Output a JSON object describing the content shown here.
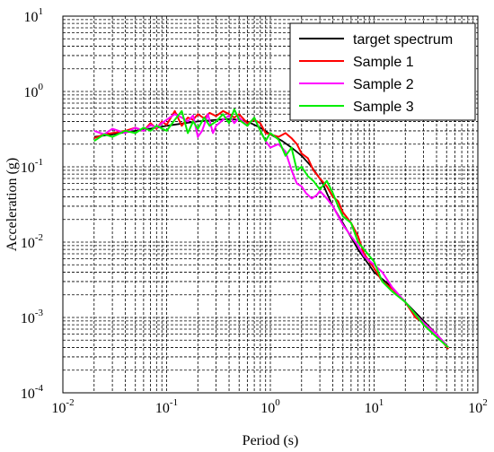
{
  "chart_data": {
    "type": "line",
    "xlabel": "Period (s)",
    "ylabel": "Acceleration (g)",
    "xscale": "log",
    "yscale": "log",
    "xlim": [
      0.01,
      100
    ],
    "ylim": [
      0.0001,
      10
    ],
    "grid": true,
    "legend_position": "top-right",
    "x_ticks": [
      {
        "base": "10",
        "exp": "-2"
      },
      {
        "base": "10",
        "exp": "-1"
      },
      {
        "base": "10",
        "exp": "0"
      },
      {
        "base": "10",
        "exp": "1"
      },
      {
        "base": "10",
        "exp": "2"
      }
    ],
    "y_ticks": [
      {
        "base": "10",
        "exp": "-4"
      },
      {
        "base": "10",
        "exp": "-3"
      },
      {
        "base": "10",
        "exp": "-2"
      },
      {
        "base": "10",
        "exp": "-1"
      },
      {
        "base": "10",
        "exp": "0"
      },
      {
        "base": "10",
        "exp": "1"
      }
    ],
    "series": [
      {
        "name": "target spectrum",
        "color": "#000000",
        "x": [
          0.02,
          0.03,
          0.05,
          0.08,
          0.1,
          0.15,
          0.2,
          0.3,
          0.4,
          0.5,
          0.6,
          0.8,
          1.0,
          1.3,
          1.6,
          2.0,
          2.5,
          3.0,
          3.2,
          3.5,
          4.0,
          5.0,
          7.0,
          10.0,
          15.0,
          20.0,
          30.0,
          40.0,
          50.0
        ],
        "y": [
          0.25,
          0.27,
          0.3,
          0.33,
          0.35,
          0.38,
          0.4,
          0.42,
          0.43,
          0.42,
          0.4,
          0.33,
          0.27,
          0.22,
          0.18,
          0.14,
          0.1,
          0.07,
          0.06,
          0.045,
          0.03,
          0.018,
          0.008,
          0.004,
          0.0025,
          0.0016,
          0.0009,
          0.0006,
          0.00043
        ]
      },
      {
        "name": "Sample 1",
        "color": "#ff0000",
        "x": [
          0.02,
          0.025,
          0.03,
          0.04,
          0.05,
          0.06,
          0.07,
          0.08,
          0.09,
          0.1,
          0.12,
          0.14,
          0.16,
          0.18,
          0.2,
          0.23,
          0.26,
          0.3,
          0.35,
          0.4,
          0.45,
          0.5,
          0.6,
          0.7,
          0.8,
          0.9,
          1.0,
          1.2,
          1.4,
          1.6,
          1.8,
          2.0,
          2.3,
          2.6,
          3.0,
          3.5,
          4.0,
          4.5,
          5.0,
          6.0,
          7.0,
          8.0,
          10.0,
          12.0,
          15.0,
          20.0,
          25.0,
          30.0,
          40.0,
          52.0
        ],
        "y": [
          0.24,
          0.27,
          0.28,
          0.3,
          0.33,
          0.3,
          0.38,
          0.32,
          0.4,
          0.36,
          0.55,
          0.35,
          0.45,
          0.42,
          0.5,
          0.44,
          0.52,
          0.47,
          0.55,
          0.5,
          0.45,
          0.5,
          0.38,
          0.42,
          0.38,
          0.28,
          0.27,
          0.25,
          0.28,
          0.24,
          0.2,
          0.15,
          0.13,
          0.09,
          0.07,
          0.055,
          0.04,
          0.035,
          0.025,
          0.018,
          0.012,
          0.007,
          0.0045,
          0.003,
          0.0024,
          0.0016,
          0.001,
          0.00085,
          0.0006,
          0.00038
        ]
      },
      {
        "name": "Sample 2",
        "color": "#ff00ff",
        "x": [
          0.02,
          0.025,
          0.03,
          0.04,
          0.05,
          0.06,
          0.07,
          0.08,
          0.09,
          0.1,
          0.12,
          0.14,
          0.16,
          0.18,
          0.2,
          0.22,
          0.25,
          0.28,
          0.3,
          0.35,
          0.4,
          0.45,
          0.5,
          0.6,
          0.7,
          0.8,
          0.9,
          1.0,
          1.2,
          1.4,
          1.6,
          1.8,
          2.0,
          2.2,
          2.5,
          2.8,
          3.0,
          3.5,
          4.0,
          5.0,
          6.0,
          7.0,
          8.0,
          10.0,
          12.0,
          15.0,
          20.0,
          25.0,
          30.0,
          40.0,
          52.0
        ],
        "y": [
          0.3,
          0.27,
          0.32,
          0.28,
          0.33,
          0.3,
          0.36,
          0.33,
          0.38,
          0.42,
          0.5,
          0.45,
          0.4,
          0.48,
          0.25,
          0.3,
          0.5,
          0.28,
          0.35,
          0.42,
          0.48,
          0.38,
          0.45,
          0.35,
          0.45,
          0.3,
          0.22,
          0.18,
          0.2,
          0.16,
          0.09,
          0.06,
          0.055,
          0.045,
          0.038,
          0.042,
          0.048,
          0.038,
          0.03,
          0.017,
          0.012,
          0.009,
          0.0065,
          0.005,
          0.004,
          0.0025,
          0.0016,
          0.0011,
          0.00085,
          0.0006,
          0.0004
        ]
      },
      {
        "name": "Sample 3",
        "color": "#00ee00",
        "x": [
          0.02,
          0.025,
          0.03,
          0.04,
          0.05,
          0.06,
          0.07,
          0.08,
          0.1,
          0.12,
          0.14,
          0.16,
          0.18,
          0.2,
          0.23,
          0.26,
          0.3,
          0.35,
          0.4,
          0.45,
          0.5,
          0.6,
          0.7,
          0.8,
          0.9,
          1.0,
          1.2,
          1.4,
          1.6,
          1.8,
          2.0,
          2.3,
          2.6,
          3.0,
          3.5,
          4.0,
          4.5,
          5.0,
          6.0,
          7.0,
          8.0,
          10.0,
          12.0,
          15.0,
          20.0,
          25.0,
          30.0,
          40.0,
          52.0
        ],
        "y": [
          0.22,
          0.27,
          0.25,
          0.3,
          0.28,
          0.33,
          0.3,
          0.35,
          0.3,
          0.42,
          0.55,
          0.28,
          0.4,
          0.32,
          0.45,
          0.35,
          0.4,
          0.5,
          0.38,
          0.58,
          0.42,
          0.35,
          0.45,
          0.3,
          0.22,
          0.28,
          0.23,
          0.14,
          0.18,
          0.09,
          0.1,
          0.075,
          0.065,
          0.05,
          0.065,
          0.045,
          0.03,
          0.022,
          0.018,
          0.01,
          0.008,
          0.0055,
          0.003,
          0.0022,
          0.0016,
          0.0011,
          0.0008,
          0.00055,
          0.0004
        ]
      }
    ]
  }
}
